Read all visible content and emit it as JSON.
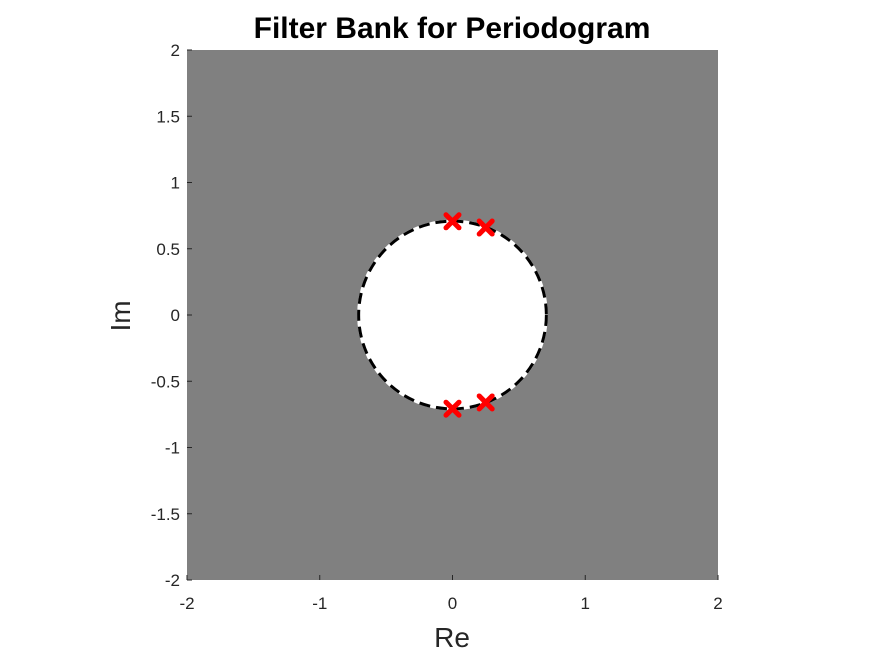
{
  "chart_data": {
    "type": "scatter",
    "title": "Filter Bank for Periodogram",
    "xlabel": "Re",
    "ylabel": "Im",
    "xlim": [
      -2,
      2
    ],
    "ylim": [
      -2,
      2
    ],
    "xticks": [
      "-2",
      "-1",
      "0",
      "1",
      "2"
    ],
    "yticks": [
      "2",
      "1.5",
      "1",
      "0.5",
      "0",
      "-0.5",
      "-1",
      "-1.5",
      "-2"
    ],
    "grid": false,
    "region": {
      "background_color": "#808080",
      "disk_color": "#ffffff",
      "disk_center": [
        0,
        0
      ],
      "disk_radius": 0.7071,
      "boundary_style": "dashed",
      "boundary_colors": [
        "#000000",
        "#ffffff"
      ]
    },
    "series": [
      {
        "marker": "x",
        "color": "#ff0000",
        "points": [
          [
            0.0,
            0.7071
          ],
          [
            0.25,
            0.66
          ],
          [
            0.0,
            -0.7071
          ],
          [
            0.25,
            -0.66
          ]
        ]
      }
    ]
  }
}
